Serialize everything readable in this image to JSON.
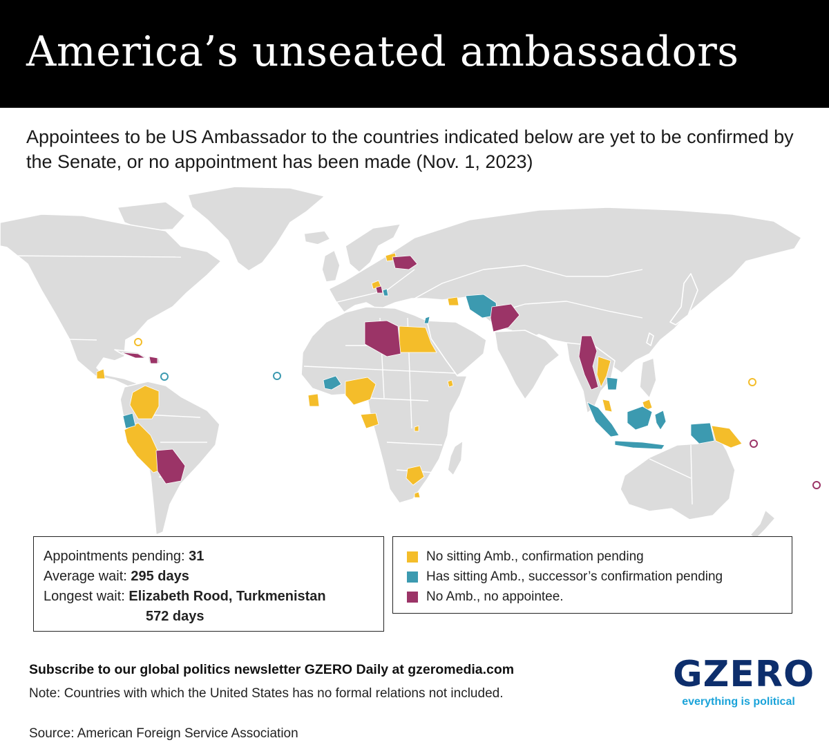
{
  "header": {
    "title": "America’s unseated ambassadors",
    "subtitle": "Appointees to be US Ambassador to the countries indicated below are yet to be confirmed by the Senate, or no appointment has been made (Nov. 1, 2023)"
  },
  "colors": {
    "land": "#dcdcdc",
    "no_sitting_pending": "#f4bd2a",
    "sitting_successor_pending": "#3c9ab0",
    "no_amb_no_appointee": "#9b3467",
    "header_bg": "#000000",
    "logo_blue": "#0d2e6c",
    "logo_tag": "#1aa3d9"
  },
  "stats": {
    "pending_label": "Appointments pending:",
    "pending_value": "31",
    "wait_label": "Average wait:",
    "wait_value": "295 days",
    "longest_label": "Longest wait:",
    "longest_value": "Elizabeth Rood, Turkmenistan",
    "longest_days": "572 days"
  },
  "legend": [
    {
      "label": "No sitting Amb., confirmation pending",
      "status": "no_sitting_pending"
    },
    {
      "label": "Has sitting Amb., successor’s confirmation pending",
      "status": "sitting_successor_pending"
    },
    {
      "label": "No Amb., no appointee.",
      "status": "no_amb_no_appointee"
    }
  ],
  "footer": {
    "subscribe": "Subscribe to our global politics newsletter GZERO Daily at gzeromedia.com",
    "note": "Note: Countries with which the United States has no formal relations not included.",
    "source": "Source: American Foreign Service Association"
  },
  "logo": {
    "word": "GZERO",
    "tagline": "everything is political"
  }
}
